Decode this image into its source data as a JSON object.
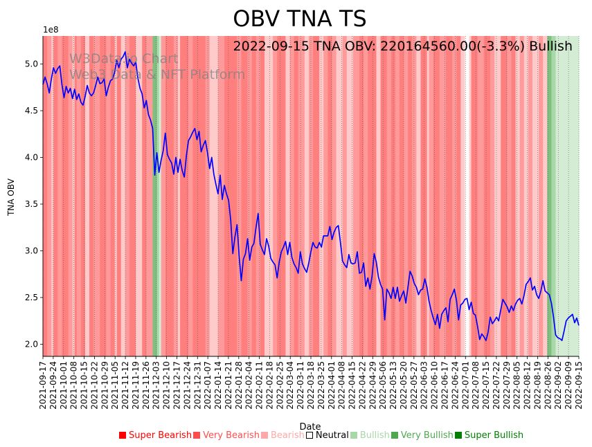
{
  "chart_data": {
    "type": "line",
    "title": "OBV TNA TS",
    "annotation": "2022-09-15 TNA OBV: 220164560.00(-3.3%) Bullish",
    "watermark": [
      "W3Data.io Chart",
      "Web3 Data & NFT Platform"
    ],
    "xlabel": "Date",
    "ylabel": "TNA OBV",
    "y_multiplier_label": "1e8",
    "ylim": [
      1.87,
      5.3
    ],
    "y_ticks": [
      2.0,
      2.5,
      3.0,
      3.5,
      4.0,
      4.5,
      5.0
    ],
    "y_tick_labels": [
      "2.0",
      "2.5",
      "3.0",
      "3.5",
      "4.0",
      "4.5",
      "5.0"
    ],
    "x_ticks": [
      "2021-09-17",
      "2021-09-24",
      "2021-10-01",
      "2021-10-08",
      "2021-10-15",
      "2021-10-22",
      "2021-10-29",
      "2021-11-05",
      "2021-11-12",
      "2021-11-19",
      "2021-11-26",
      "2021-12-03",
      "2021-12-10",
      "2021-12-17",
      "2021-12-24",
      "2021-12-31",
      "2022-01-07",
      "2022-01-14",
      "2022-01-21",
      "2022-01-28",
      "2022-02-04",
      "2022-02-11",
      "2022-02-18",
      "2022-02-25",
      "2022-03-04",
      "2022-03-11",
      "2022-03-18",
      "2022-03-25",
      "2022-04-01",
      "2022-04-08",
      "2022-04-15",
      "2022-04-22",
      "2022-04-29",
      "2022-05-06",
      "2022-05-13",
      "2022-05-20",
      "2022-05-27",
      "2022-06-03",
      "2022-06-10",
      "2022-06-17",
      "2022-06-24",
      "2022-07-01",
      "2022-07-08",
      "2022-07-15",
      "2022-07-22",
      "2022-07-29",
      "2022-08-05",
      "2022-08-12",
      "2022-08-19",
      "2022-08-26",
      "2022-09-02",
      "2022-09-09",
      "2022-09-15"
    ],
    "series": [
      {
        "name": "TNA OBV",
        "color": "#0000ff",
        "values": [
          4.78,
          4.86,
          4.79,
          4.69,
          4.84,
          4.96,
          4.9,
          4.95,
          4.98,
          4.78,
          4.64,
          4.76,
          4.69,
          4.74,
          4.63,
          4.73,
          4.62,
          4.68,
          4.59,
          4.56,
          4.65,
          4.77,
          4.69,
          4.66,
          4.69,
          4.77,
          4.86,
          4.79,
          4.8,
          4.84,
          4.66,
          4.75,
          4.82,
          4.84,
          4.91,
          5.04,
          4.96,
          5.05,
          5.08,
          5.13,
          4.96,
          5.05,
          5.01,
          4.98,
          5.02,
          4.85,
          4.74,
          4.68,
          4.53,
          4.61,
          4.46,
          4.4,
          4.31,
          3.81,
          4.05,
          3.84,
          3.97,
          4.07,
          4.26,
          4.03,
          3.98,
          3.94,
          3.82,
          4.0,
          3.84,
          3.98,
          3.86,
          3.79,
          4.02,
          4.18,
          4.22,
          4.27,
          4.31,
          4.19,
          4.28,
          4.06,
          4.13,
          4.18,
          4.05,
          3.88,
          4.0,
          3.82,
          3.71,
          3.61,
          3.81,
          3.55,
          3.7,
          3.61,
          3.54,
          3.33,
          2.97,
          3.15,
          3.28,
          2.94,
          2.68,
          2.91,
          2.97,
          3.13,
          2.9,
          3.04,
          3.08,
          3.25,
          3.4,
          3.07,
          3.01,
          2.96,
          3.13,
          3.05,
          2.92,
          2.88,
          2.85,
          2.71,
          2.88,
          2.99,
          3.04,
          3.1,
          2.96,
          3.09,
          2.93,
          2.86,
          2.82,
          2.76,
          2.99,
          2.86,
          2.81,
          2.77,
          2.87,
          2.99,
          3.09,
          3.04,
          3.03,
          3.09,
          3.04,
          3.16,
          3.16,
          3.16,
          3.26,
          3.12,
          3.2,
          3.25,
          3.27,
          3.09,
          2.89,
          2.85,
          2.82,
          2.96,
          2.87,
          2.86,
          2.87,
          2.99,
          2.76,
          2.77,
          2.87,
          2.62,
          2.71,
          2.59,
          2.73,
          2.97,
          2.88,
          2.72,
          2.64,
          2.59,
          2.26,
          2.59,
          2.55,
          2.49,
          2.61,
          2.49,
          2.61,
          2.46,
          2.52,
          2.57,
          2.44,
          2.61,
          2.78,
          2.73,
          2.65,
          2.61,
          2.53,
          2.58,
          2.59,
          2.7,
          2.61,
          2.46,
          2.36,
          2.28,
          2.21,
          2.32,
          2.17,
          2.32,
          2.36,
          2.39,
          2.24,
          2.48,
          2.53,
          2.59,
          2.47,
          2.26,
          2.42,
          2.44,
          2.48,
          2.49,
          2.37,
          2.45,
          2.33,
          2.31,
          2.19,
          2.05,
          2.11,
          2.08,
          2.04,
          2.13,
          2.29,
          2.22,
          2.25,
          2.29,
          2.25,
          2.37,
          2.48,
          2.44,
          2.4,
          2.34,
          2.41,
          2.36,
          2.43,
          2.47,
          2.49,
          2.43,
          2.52,
          2.64,
          2.67,
          2.71,
          2.58,
          2.62,
          2.53,
          2.49,
          2.57,
          2.68,
          2.57,
          2.55,
          2.53,
          2.44,
          2.29,
          2.1,
          2.07,
          2.06,
          2.04,
          2.14,
          2.25,
          2.28,
          2.3,
          2.32,
          2.23,
          2.28,
          2.2
        ]
      }
    ],
    "bands": [
      "SB",
      "SB",
      "VB",
      "VB",
      "B",
      "SB",
      "SB",
      "VB",
      "VB",
      "SB",
      "SB",
      "SB",
      "VB",
      "VB",
      "B",
      "SB",
      "VB",
      "VB",
      "SB",
      "SB",
      "B",
      "B",
      "SB",
      "SB",
      "VB",
      "VB",
      "VB",
      "SB",
      "SB",
      "SB",
      "VB",
      "VB",
      "SB",
      "SB",
      "B",
      "SB",
      "SB",
      "B",
      "B",
      "VB",
      "VB",
      "SB",
      "SB",
      "SB",
      "B",
      "B",
      "B",
      "SB",
      "SB",
      "VB",
      "VB",
      "VB",
      "SU",
      "SU",
      "VU",
      "U",
      "VB",
      "VB",
      "SB",
      "SB",
      "SB",
      "SB",
      "VB",
      "VB",
      "B",
      "SB",
      "SB",
      "SB",
      "SB",
      "VB",
      "VB",
      "SB",
      "SB",
      "SB",
      "SB",
      "SB",
      "SB",
      "VB",
      "VB",
      "B",
      "B",
      "B",
      "B",
      "VB",
      "VB",
      "VB",
      "SB",
      "SB",
      "SB",
      "SB",
      "SB",
      "SB",
      "VB",
      "VB",
      "SB",
      "SB",
      "SB",
      "VB",
      "VB",
      "SB",
      "SB",
      "VB",
      "VB",
      "SB",
      "SB",
      "B",
      "B",
      "B",
      "B",
      "VB",
      "VB",
      "SB",
      "SB",
      "SB",
      "SB",
      "B",
      "B",
      "VB",
      "VB",
      "SB",
      "SB",
      "VB",
      "VB",
      "VB",
      "B",
      "B",
      "VB",
      "VB",
      "SB",
      "SB",
      "SB",
      "B",
      "B",
      "VB",
      "VB",
      "SB",
      "SB",
      "VB",
      "VB",
      "B",
      "B",
      "B",
      "VB",
      "VB",
      "B",
      "B",
      "B",
      "VB",
      "VB",
      "VB",
      "SB",
      "SB",
      "VB",
      "VB",
      "SB",
      "SB",
      "SB",
      "SB",
      "B",
      "B",
      "SB",
      "SB",
      "SB",
      "VB",
      "VB",
      "SB",
      "SB",
      "VB",
      "VB",
      "SB",
      "SB",
      "VB",
      "VB",
      "SB",
      "SB",
      "VB",
      "VB",
      "B",
      "B",
      "SB",
      "SB",
      "SB",
      "B",
      "VB",
      "VB",
      "SB",
      "SB",
      "SB",
      "VB",
      "VB",
      "VB",
      "SB",
      "SB",
      "SB",
      "VB",
      "VB",
      "SB",
      "SB",
      "B",
      "B",
      "N",
      "N",
      "B",
      "SB",
      "SB",
      "SB",
      "VB",
      "VB",
      "VB",
      "SB",
      "SB",
      "SB",
      "VB",
      "VB",
      "B",
      "B",
      "B",
      "SB",
      "SB",
      "SB",
      "VB",
      "VB",
      "SB",
      "SB",
      "B",
      "B",
      "VB",
      "VB",
      "B",
      "B",
      "VB",
      "VB",
      "B",
      "B",
      "B",
      "VB",
      "VB",
      "B",
      "B",
      "SU",
      "SU",
      "VU",
      "VU",
      "U",
      "U",
      "U",
      "U",
      "U",
      "U",
      "U",
      "U",
      "U",
      "U",
      "U"
    ],
    "band_colors": {
      "SB": "#ff7f7f",
      "VB": "#ff9a9a",
      "B": "#ffcaca",
      "N": "#ffffff",
      "U": "#d3ecd3",
      "VU": "#a8d7a8",
      "SU": "#7fbf7f"
    },
    "legend": [
      {
        "label": "Super Bearish",
        "color": "#ff0000"
      },
      {
        "label": "Very Bearish",
        "color": "#ff4d4d"
      },
      {
        "label": "Bearish",
        "color": "#ffa8a8"
      },
      {
        "label": "Neutral",
        "color": "#ffffff"
      },
      {
        "label": "Bullish",
        "color": "#a8d7a8"
      },
      {
        "label": "Very Bullish",
        "color": "#4fa84f"
      },
      {
        "label": "Super Bullish",
        "color": "#008000"
      }
    ]
  }
}
